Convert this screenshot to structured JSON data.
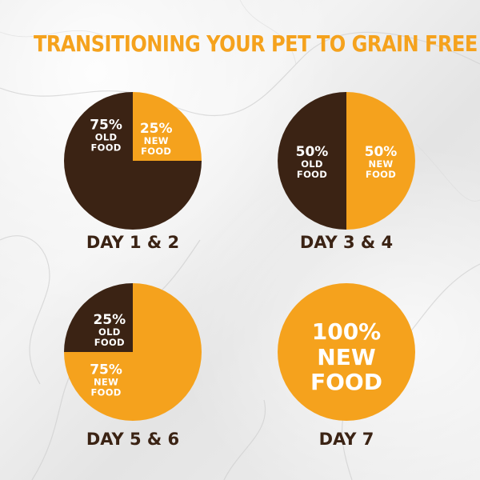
{
  "title": "TRANSITIONING YOUR PET TO GRAIN FREE",
  "colors": {
    "new_food": "#f5a21d",
    "old_food": "#3b2314",
    "title": "#f5a21d",
    "label": "#3b2314",
    "text_on_pie": "#ffffff"
  },
  "chart_data": [
    {
      "type": "pie",
      "title": "DAY 1 & 2",
      "slices": [
        {
          "name": "NEW FOOD",
          "value": 25,
          "label_pct": "25%",
          "label_line1": "NEW",
          "label_line2": "FOOD"
        },
        {
          "name": "OLD FOOD",
          "value": 75,
          "label_pct": "75%",
          "label_line1": "OLD",
          "label_line2": "FOOD"
        }
      ]
    },
    {
      "type": "pie",
      "title": "DAY 3 & 4",
      "slices": [
        {
          "name": "NEW FOOD",
          "value": 50,
          "label_pct": "50%",
          "label_line1": "NEW",
          "label_line2": "FOOD"
        },
        {
          "name": "OLD FOOD",
          "value": 50,
          "label_pct": "50%",
          "label_line1": "OLD",
          "label_line2": "FOOD"
        }
      ]
    },
    {
      "type": "pie",
      "title": "DAY 5 & 6",
      "slices": [
        {
          "name": "NEW FOOD",
          "value": 75,
          "label_pct": "75%",
          "label_line1": "NEW",
          "label_line2": "FOOD"
        },
        {
          "name": "OLD FOOD",
          "value": 25,
          "label_pct": "25%",
          "label_line1": "OLD",
          "label_line2": "FOOD"
        }
      ]
    },
    {
      "type": "pie",
      "title": "DAY 7",
      "slices": [
        {
          "name": "NEW FOOD",
          "value": 100,
          "label_pct": "100%",
          "label_line1": "NEW",
          "label_line2": "FOOD"
        }
      ]
    }
  ]
}
